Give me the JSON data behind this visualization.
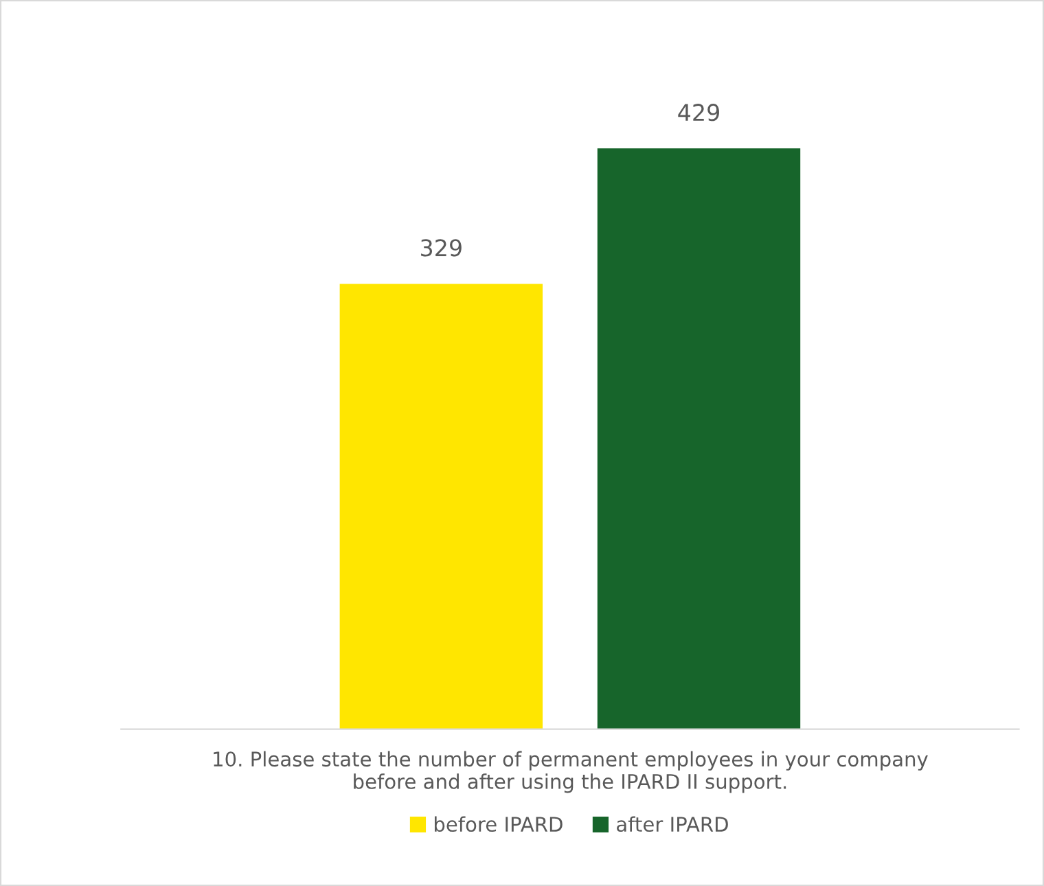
{
  "chart_data": {
    "type": "bar",
    "categories": [
      null
    ],
    "xlabel": "10. Please state the number of permanent employees in your company\nbefore and after using the IPARD II support.",
    "series": [
      {
        "name": "before IPARD",
        "color": "#ffe600",
        "values": [
          329
        ]
      },
      {
        "name": "after IPARD",
        "color": "#17652b",
        "values": [
          429
        ]
      }
    ],
    "data_labels": true,
    "legend": "bottom",
    "grid": false
  }
}
